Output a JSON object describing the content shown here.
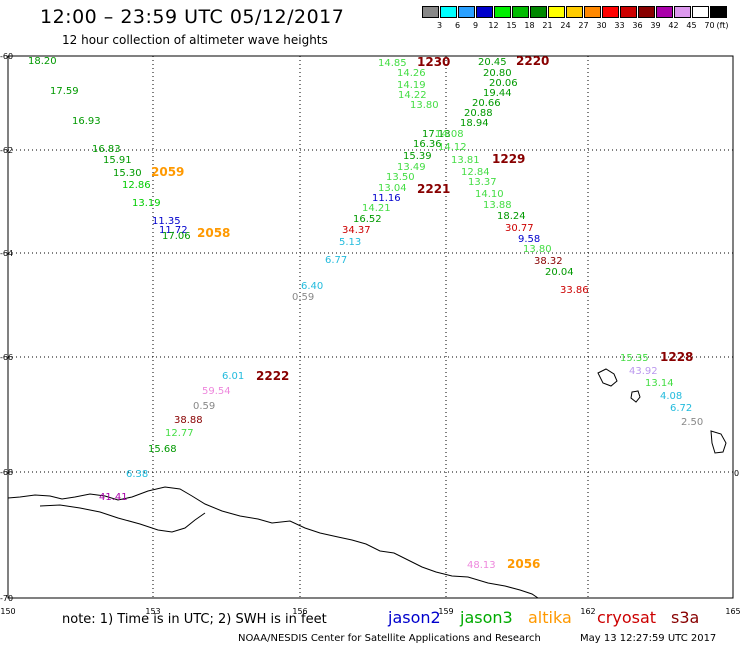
{
  "header": {
    "title": "12:00 – 23:59 UTC 05/12/2017",
    "subtitle": "12 hour collection of altimeter wave heights"
  },
  "color_scale": {
    "unit": "(ft)",
    "steps": [
      {
        "label": "3",
        "color": "#888888"
      },
      {
        "label": "6",
        "color": "#00ffff"
      },
      {
        "label": "9",
        "color": "#2aa0ff"
      },
      {
        "label": "12",
        "color": "#0000cc"
      },
      {
        "label": "15",
        "color": "#00ee00"
      },
      {
        "label": "18",
        "color": "#00bb00"
      },
      {
        "label": "21",
        "color": "#008800"
      },
      {
        "label": "24",
        "color": "#ffff00"
      },
      {
        "label": "27",
        "color": "#ffcc00"
      },
      {
        "label": "30",
        "color": "#ff8800"
      },
      {
        "label": "33",
        "color": "#ff0000"
      },
      {
        "label": "36",
        "color": "#cc0000"
      },
      {
        "label": "39",
        "color": "#880000"
      },
      {
        "label": "42",
        "color": "#aa00aa"
      },
      {
        "label": "45",
        "color": "#dd99ee"
      },
      {
        "label": "70",
        "color": "#ffffff"
      },
      {
        "label": "",
        "color": "#000000"
      }
    ]
  },
  "axes": {
    "lon_ticks": [
      "150",
      "153",
      "156",
      "159",
      "162",
      "165"
    ],
    "lat_ticks": [
      "-60",
      "-62",
      "-64",
      "-66",
      "-68",
      "-70"
    ]
  },
  "labels": {
    "pass_times": [
      {
        "text": "1230",
        "color": "#880000"
      },
      {
        "text": "2220",
        "color": "#880000"
      },
      {
        "text": "1229",
        "color": "#880000"
      },
      {
        "text": "2221",
        "color": "#880000"
      },
      {
        "text": "2059",
        "color": "#ff9900"
      },
      {
        "text": "2058",
        "color": "#ff9900"
      },
      {
        "text": "2222",
        "color": "#880000"
      },
      {
        "text": "1228",
        "color": "#880000"
      },
      {
        "text": "2056",
        "color": "#ff9900"
      }
    ],
    "wave_values": [
      {
        "text": "18.20",
        "color": "#009900"
      },
      {
        "text": "17.59",
        "color": "#009900"
      },
      {
        "text": "16.93",
        "color": "#009900"
      },
      {
        "text": "16.83",
        "color": "#009900"
      },
      {
        "text": "15.91",
        "color": "#009900"
      },
      {
        "text": "15.30",
        "color": "#009900"
      },
      {
        "text": "12.86",
        "color": "#00cc00"
      },
      {
        "text": "13.19",
        "color": "#00cc00"
      },
      {
        "text": "11.35",
        "color": "#0000cc"
      },
      {
        "text": "11.72",
        "color": "#0000cc"
      },
      {
        "text": "17.06",
        "color": "#009900"
      },
      {
        "text": "14.85",
        "color": "#44dd44"
      },
      {
        "text": "14.26",
        "color": "#44dd44"
      },
      {
        "text": "14.19",
        "color": "#44dd44"
      },
      {
        "text": "14.22",
        "color": "#44dd44"
      },
      {
        "text": "13.80",
        "color": "#44dd44"
      },
      {
        "text": "17.13",
        "color": "#009900"
      },
      {
        "text": "16.36",
        "color": "#009900"
      },
      {
        "text": "15.39",
        "color": "#009900"
      },
      {
        "text": "13.49",
        "color": "#44dd44"
      },
      {
        "text": "13.50",
        "color": "#44dd44"
      },
      {
        "text": "13.04",
        "color": "#44dd44"
      },
      {
        "text": "11.16",
        "color": "#0000cc"
      },
      {
        "text": "14.21",
        "color": "#44dd44"
      },
      {
        "text": "16.52",
        "color": "#009900"
      },
      {
        "text": "34.37",
        "color": "#cc0000"
      },
      {
        "text": "5.13",
        "color": "#22bbdd"
      },
      {
        "text": "6.77",
        "color": "#22bbdd"
      },
      {
        "text": "6.40",
        "color": "#22bbdd"
      },
      {
        "text": "0.59",
        "color": "#888888"
      },
      {
        "text": "20.45",
        "color": "#009900"
      },
      {
        "text": "20.80",
        "color": "#009900"
      },
      {
        "text": "20.06",
        "color": "#009900"
      },
      {
        "text": "19.44",
        "color": "#009900"
      },
      {
        "text": "20.66",
        "color": "#009900"
      },
      {
        "text": "20.88",
        "color": "#009900"
      },
      {
        "text": "18.94",
        "color": "#009900"
      },
      {
        "text": "14.08",
        "color": "#44dd44"
      },
      {
        "text": "14.12",
        "color": "#44dd44"
      },
      {
        "text": "13.81",
        "color": "#44dd44"
      },
      {
        "text": "12.84",
        "color": "#44dd44"
      },
      {
        "text": "13.37",
        "color": "#44dd44"
      },
      {
        "text": "14.10",
        "color": "#44dd44"
      },
      {
        "text": "13.88",
        "color": "#44dd44"
      },
      {
        "text": "18.24",
        "color": "#009900"
      },
      {
        "text": "30.77",
        "color": "#cc0000"
      },
      {
        "text": "9.58",
        "color": "#0000cc"
      },
      {
        "text": "13.80",
        "color": "#44dd44"
      },
      {
        "text": "38.32",
        "color": "#880000"
      },
      {
        "text": "20.04",
        "color": "#009900"
      },
      {
        "text": "33.86",
        "color": "#cc0000"
      },
      {
        "text": "6.01",
        "color": "#22bbdd"
      },
      {
        "text": "59.54",
        "color": "#ee88dd"
      },
      {
        "text": "0.59",
        "color": "#888888"
      },
      {
        "text": "38.88",
        "color": "#880000"
      },
      {
        "text": "12.77",
        "color": "#44dd44"
      },
      {
        "text": "15.68",
        "color": "#009900"
      },
      {
        "text": "6.38",
        "color": "#22bbdd"
      },
      {
        "text": "41.41",
        "color": "#aa00aa"
      },
      {
        "text": "15.35",
        "color": "#44dd44"
      },
      {
        "text": "43.92",
        "color": "#bb99ee"
      },
      {
        "text": "13.14",
        "color": "#44dd44"
      },
      {
        "text": "4.08",
        "color": "#22bbdd"
      },
      {
        "text": "6.72",
        "color": "#22bbdd"
      },
      {
        "text": "2.50",
        "color": "#888888"
      },
      {
        "text": "48.13",
        "color": "#ee88dd"
      }
    ]
  },
  "legend": {
    "note": "note: 1) Time is in UTC; 2) SWH is in feet",
    "satellites": [
      {
        "name": "jason2",
        "color": "#0000cc"
      },
      {
        "name": "jason3",
        "color": "#00aa00"
      },
      {
        "name": "altika",
        "color": "#ff9900"
      },
      {
        "name": "cryosat",
        "color": "#cc0000"
      },
      {
        "name": "s3a",
        "color": "#880000"
      }
    ]
  },
  "footer": {
    "credit": "NOAA/NESDIS Center for Satellite Applications and Research",
    "timestamp": "May 13 12:27:59 UTC 2017",
    "edge_mark": "0"
  }
}
